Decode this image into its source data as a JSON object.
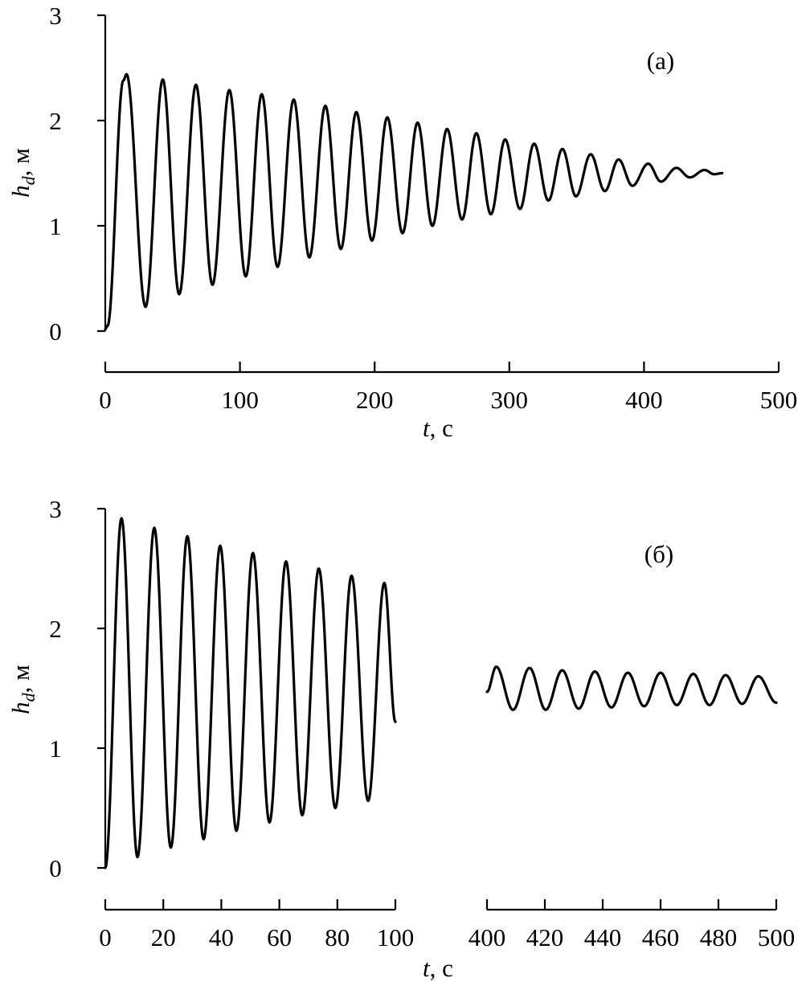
{
  "chart_data": [
    {
      "type": "line",
      "panel_label": "(a)",
      "xlabel_var": "t",
      "xlabel_unit": ", с",
      "ylabel_var": "h",
      "ylabel_sub": "d",
      "ylabel_unit": ", м",
      "xlim": [
        0,
        500
      ],
      "ylim": [
        0,
        3
      ],
      "x_ticks": [
        0,
        100,
        200,
        300,
        400,
        500
      ],
      "y_ticks": [
        0,
        1,
        2,
        3
      ],
      "grid": false,
      "series": [
        {
          "t": [
            0,
            1.7,
            13.4,
            15.8,
            29.9,
            42.7,
            54.9,
            67.3,
            79.6,
            92.1,
            104.3,
            116.2,
            127.9,
            139.9,
            151.5,
            163.4,
            174.9,
            186.4,
            198.0,
            209.4,
            220.7,
            231.9,
            242.9,
            253.8,
            264.9,
            275.5,
            286.3,
            296.9,
            307.9,
            318.4,
            329.0,
            339.4,
            349.5,
            360.4,
            370.9,
            381.1,
            391.4,
            403.1,
            412.6,
            424.0,
            434.0,
            445.0,
            452.0,
            458.0
          ],
          "hd": [
            0.02,
            0.05,
            2.38,
            2.44,
            0.23,
            2.39,
            0.35,
            2.34,
            0.44,
            2.29,
            0.52,
            2.25,
            0.61,
            2.2,
            0.7,
            2.14,
            0.78,
            2.08,
            0.86,
            2.03,
            0.93,
            1.98,
            1.0,
            1.92,
            1.06,
            1.88,
            1.11,
            1.82,
            1.16,
            1.78,
            1.24,
            1.73,
            1.28,
            1.68,
            1.33,
            1.63,
            1.38,
            1.59,
            1.42,
            1.55,
            1.46,
            1.53,
            1.49,
            1.5
          ]
        }
      ]
    },
    {
      "type": "line",
      "panel_label": "(б)",
      "xlabel_var": "t",
      "xlabel_unit": ", с",
      "ylabel_var": "h",
      "ylabel_sub": "d",
      "ylabel_unit": ", м",
      "ylim": [
        0,
        3
      ],
      "y_ticks": [
        0,
        1,
        2,
        3
      ],
      "grid": false,
      "broken_x_axis": true,
      "segments": [
        {
          "xlim": [
            0,
            100
          ],
          "x_ticks": [
            0,
            20,
            40,
            60,
            80,
            100
          ],
          "t": [
            0,
            5.6,
            11.1,
            16.9,
            22.6,
            28.3,
            33.9,
            39.6,
            45.2,
            50.9,
            56.6,
            62.3,
            67.9,
            73.6,
            79.3,
            84.9,
            90.6,
            96.2,
            100
          ],
          "hd": [
            0.0,
            2.92,
            0.09,
            2.84,
            0.17,
            2.77,
            0.24,
            2.69,
            0.31,
            2.63,
            0.38,
            2.56,
            0.44,
            2.5,
            0.5,
            2.44,
            0.56,
            2.38,
            1.22
          ]
        },
        {
          "xlim": [
            400,
            500
          ],
          "x_ticks": [
            400,
            420,
            440,
            460,
            480,
            500
          ],
          "t": [
            400,
            403.2,
            409.0,
            414.7,
            420.3,
            426.0,
            431.7,
            437.3,
            443.0,
            448.7,
            454.3,
            460.0,
            465.6,
            471.3,
            476.9,
            482.5,
            488.2,
            493.8,
            500
          ],
          "hd": [
            1.47,
            1.68,
            1.32,
            1.67,
            1.32,
            1.65,
            1.33,
            1.64,
            1.34,
            1.63,
            1.35,
            1.63,
            1.36,
            1.62,
            1.36,
            1.61,
            1.37,
            1.6,
            1.38
          ]
        }
      ]
    }
  ]
}
